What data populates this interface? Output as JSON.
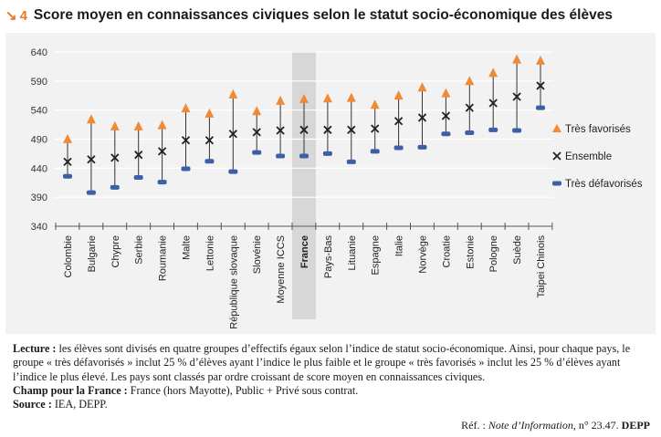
{
  "figure": {
    "number": "4",
    "title": "Score moyen en connaissances civiques selon le statut socio-économique des élèves"
  },
  "colors": {
    "accent": "#e8772e",
    "favorises": "#f08a34",
    "ensemble": "#222222",
    "defavorises": "#3d5fa8",
    "highlight": "#d7d7d7",
    "panel": "#f2f2f2"
  },
  "chart_data": {
    "type": "scatter",
    "title": "Score moyen en connaissances civiques selon le statut socio-économique des élèves",
    "xlabel": "",
    "ylabel": "",
    "ylim": [
      340,
      640
    ],
    "yticks": [
      340,
      390,
      440,
      490,
      540,
      590,
      640
    ],
    "highlight": "France",
    "categories": [
      "Colombie",
      "Bulgarie",
      "Chypre",
      "Serbie",
      "Roumanie",
      "Malte",
      "Lettonie",
      "République slovaque",
      "Slovénie",
      "Moyenne ICCS",
      "France",
      "Pays-Bas",
      "Lituanie",
      "Espagne",
      "Italie",
      "Norvège",
      "Croatie",
      "Estonie",
      "Pologne",
      "Suède",
      "Taipei Chinois"
    ],
    "series": [
      {
        "name": "Très favorisés",
        "marker": "triangle",
        "values": [
          491,
          525,
          513,
          513,
          515,
          544,
          535,
          568,
          539,
          557,
          560,
          561,
          562,
          550,
          566,
          580,
          570,
          591,
          605,
          628,
          626
        ]
      },
      {
        "name": "Ensemble",
        "marker": "x",
        "values": [
          451,
          455,
          458,
          463,
          469,
          488,
          488,
          499,
          502,
          505,
          506,
          506,
          506,
          508,
          521,
          527,
          530,
          544,
          552,
          563,
          582
        ]
      },
      {
        "name": "Très défavorisés",
        "marker": "bar",
        "values": [
          426,
          398,
          407,
          424,
          416,
          439,
          452,
          434,
          467,
          461,
          461,
          465,
          451,
          469,
          475,
          476,
          499,
          501,
          506,
          505,
          544
        ]
      }
    ],
    "legend_position": "right"
  },
  "notes": {
    "lecture_label": "Lecture :",
    "lecture_text": "les élèves sont divisés en quatre groupes d’effectifs égaux selon l’indice de statut socio-économique. Ainsi, pour chaque pays, le groupe « très défavorisés » inclut 25 % d’élèves ayant l’indice le plus faible et le groupe « très favorisés » inclut les 25 % d’élèves ayant l’indice le plus élevé. Les pays sont classés par ordre croissant de score moyen en connaissances civiques.",
    "champ_label": "Champ pour la France :",
    "champ_text": "France (hors Mayotte), Public + Privé sous contrat.",
    "source_label": "Source :",
    "source_text": "IEA, DEPP."
  },
  "reference": {
    "prefix": "Réf. :",
    "publication": "Note d’Information",
    "number": ", n° 23.47.",
    "publisher": "DEPP"
  }
}
